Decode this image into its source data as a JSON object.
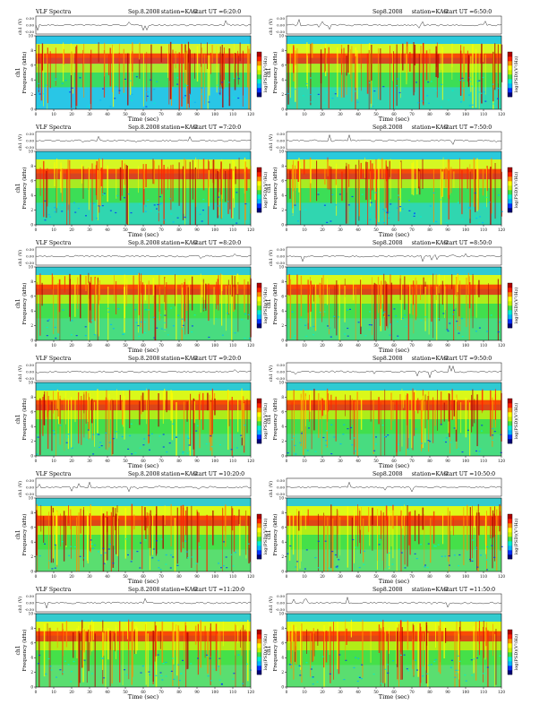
{
  "page": {
    "header_left": "VLF Spectra",
    "date": "Sep.8.2008",
    "date_short": "Sep8.2008",
    "station": "station=KAG",
    "start_prefix": "start UT ="
  },
  "labels": {
    "ch_axis": "ch1 (V)",
    "freq_axis_ch": "ch1",
    "freq_axis": "Frequency (kHz)",
    "time_axis": "Time (sec)",
    "colorbar_label": "log(PSD)(V²/Hz)"
  },
  "chart_data": {
    "type": "heatmap",
    "panel_count": 12,
    "x_axis": {
      "label": "Time (sec)",
      "range": [
        0,
        120
      ],
      "ticks": [
        "0",
        "10",
        "20",
        "30",
        "40",
        "50",
        "60",
        "70",
        "80",
        "90",
        "100",
        "110",
        "120"
      ]
    },
    "y_axis": {
      "label": "Frequency (kHz)",
      "range": [
        0,
        10
      ],
      "ticks": [
        "0",
        "2",
        "4",
        "6",
        "8",
        "10"
      ]
    },
    "ch_axis": {
      "label": "ch1 (V)",
      "ticks": [
        "0.50",
        "0.00",
        "-0.50"
      ]
    },
    "colorscale": [
      "#00007a",
      "#0030ff",
      "#00b4ff",
      "#00f0d0",
      "#40e040",
      "#c8f000",
      "#ffff00",
      "#ff8c00",
      "#ff2000",
      "#b00000"
    ],
    "panels": [
      {
        "start_ut": "6:20:0",
        "header": "left",
        "dominant": "#29c6e6"
      },
      {
        "start_ut": "6:50:0",
        "header": "right",
        "dominant": "#30d6b0"
      },
      {
        "start_ut": "7:20:0",
        "header": "left",
        "dominant": "#30d6b0"
      },
      {
        "start_ut": "7:50:0",
        "header": "right",
        "dominant": "#30d6b0"
      },
      {
        "start_ut": "8:20:0",
        "header": "left",
        "dominant": "#48dc80"
      },
      {
        "start_ut": "8:50:0",
        "header": "right",
        "dominant": "#48dc80"
      },
      {
        "start_ut": "9:20:0",
        "header": "left",
        "dominant": "#48dc80"
      },
      {
        "start_ut": "9:50:0",
        "header": "right",
        "dominant": "#48dc80"
      },
      {
        "start_ut": "10:20:0",
        "header": "left",
        "dominant": "#5ade70"
      },
      {
        "start_ut": "10:50:0",
        "header": "right",
        "dominant": "#5ade70"
      },
      {
        "start_ut": "11:20:0",
        "header": "left",
        "dominant": "#5ade70"
      },
      {
        "start_ut": "11:50:0",
        "header": "right",
        "dominant": "#5ade70"
      }
    ]
  }
}
